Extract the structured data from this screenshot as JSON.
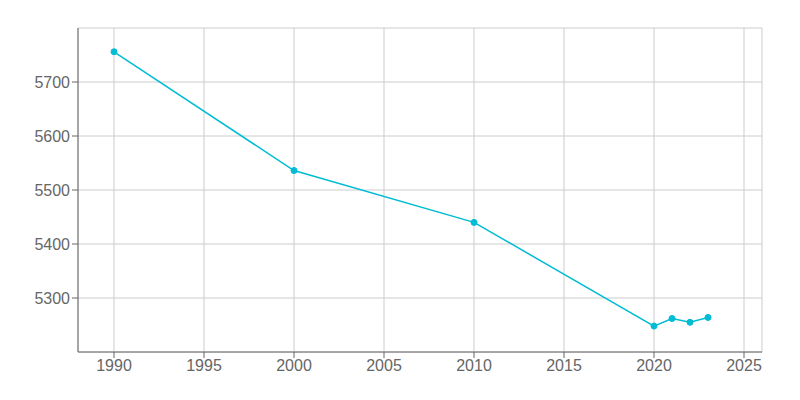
{
  "chart_data": {
    "type": "line",
    "x": [
      1990,
      2000,
      2010,
      2020,
      2021,
      2022,
      2023
    ],
    "values": [
      5756,
      5536,
      5440,
      5248,
      5262,
      5255,
      5264
    ],
    "color": "#00BCD4",
    "marker": "circle",
    "xlim": [
      1988,
      2026
    ],
    "ylim": [
      5200,
      5800
    ],
    "xticks": [
      1990,
      1995,
      2000,
      2005,
      2010,
      2015,
      2020,
      2025
    ],
    "yticks": [
      5300,
      5400,
      5500,
      5600,
      5700
    ],
    "grid": true
  }
}
